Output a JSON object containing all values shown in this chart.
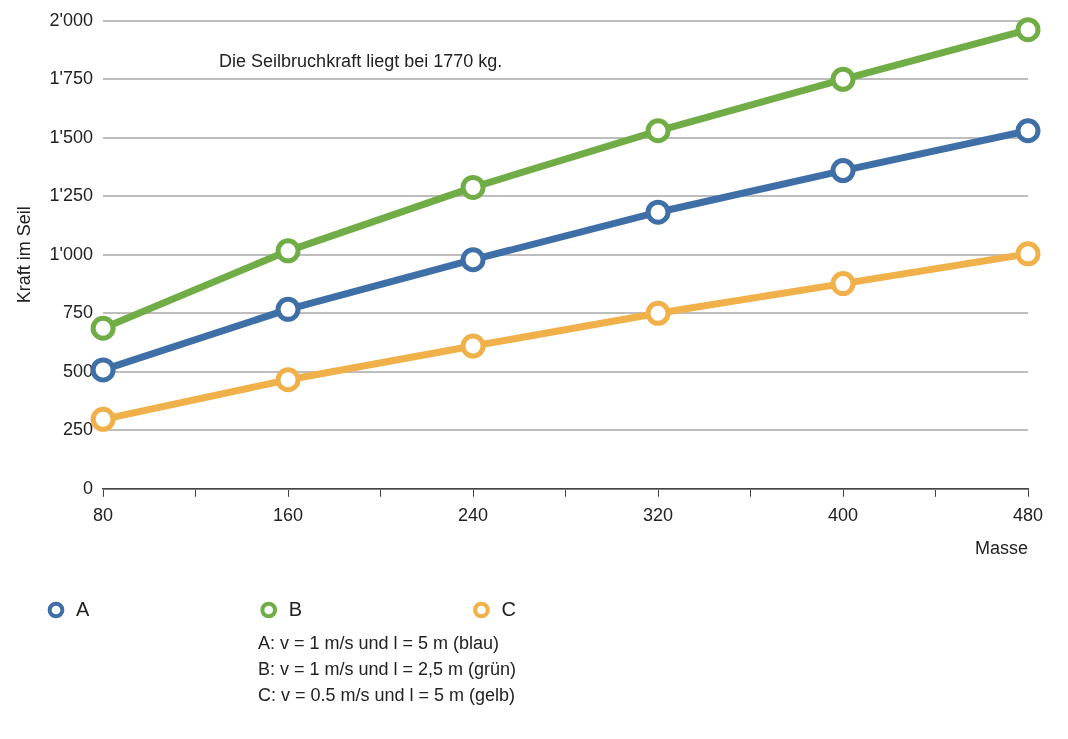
{
  "chart_data": {
    "type": "line",
    "xlabel": "Masse",
    "ylabel": "Kraft im Seil",
    "x": [
      80,
      160,
      240,
      320,
      400,
      480
    ],
    "series": [
      {
        "name": "A",
        "color": "#3f6fa7",
        "values": [
          508,
          767,
          979,
          1182,
          1360,
          1530
        ]
      },
      {
        "name": "B",
        "color": "#70ad47",
        "values": [
          686,
          1017,
          1288,
          1530,
          1750,
          1962
        ]
      },
      {
        "name": "C",
        "color": "#f0b04a",
        "values": [
          297,
          466,
          610,
          750,
          877,
          1004
        ]
      }
    ],
    "xlim": [
      80,
      480
    ],
    "xticks": [
      80,
      {
        "value": 120,
        "label": null
      },
      160,
      {
        "value": 200,
        "label": null
      },
      240,
      {
        "value": 280,
        "label": null
      },
      320,
      {
        "value": 360,
        "label": null
      },
      400,
      {
        "value": 440,
        "label": null
      },
      480
    ],
    "ylim": [
      0,
      2000
    ],
    "yticks": [
      0,
      250,
      500,
      750,
      {
        "value": 1000,
        "label": "1'000"
      },
      {
        "value": 1250,
        "label": "1'250"
      },
      {
        "value": 1500,
        "label": "1'500"
      },
      {
        "value": 1750,
        "label": "1'750"
      },
      {
        "value": 2000,
        "label": "2'000"
      }
    ],
    "grid": "y",
    "legend": "bottom",
    "marker": "circle",
    "line_style": "solid",
    "annotations": [
      "Die Seilbruchkraft liegt bei 1770 kg.",
      "A: v = 1 m/s und l = 5 m (blau)",
      "B: v = 1 m/s und l = 2,5 m (grün)",
      "C: v = 0.5 m/s und l = 5 m (gelb)"
    ]
  }
}
